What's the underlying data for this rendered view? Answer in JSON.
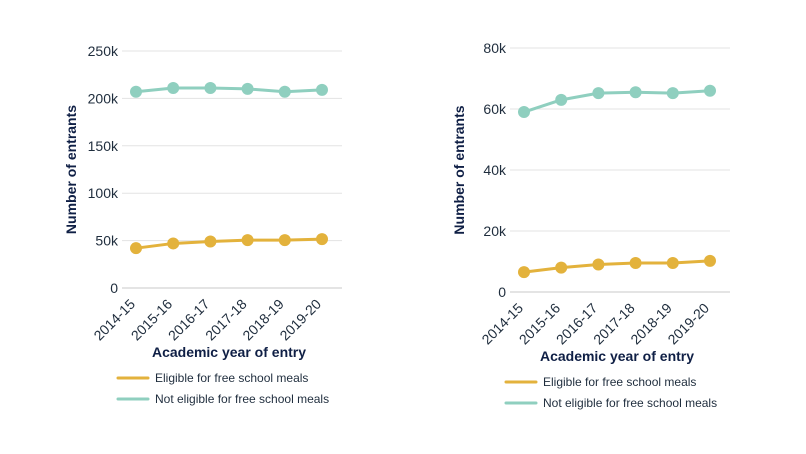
{
  "chart_data": [
    {
      "type": "line",
      "categories": [
        "2014-15",
        "2015-16",
        "2016-17",
        "2017-18",
        "2018-19",
        "2019-20"
      ],
      "series": [
        {
          "name": "Eligible for free school meals",
          "color": "#e3b23c",
          "values": [
            42000,
            47000,
            49000,
            50500,
            50500,
            51500
          ]
        },
        {
          "name": "Not eligible for free school meals",
          "color": "#8fcfbf",
          "values": [
            207000,
            211000,
            211000,
            210000,
            207000,
            209000
          ]
        }
      ],
      "xlabel": "Academic year of entry",
      "ylabel": "Number of entrants",
      "ylim": [
        0,
        250000
      ],
      "yticks": [
        0,
        50000,
        100000,
        150000,
        200000,
        250000
      ],
      "ytick_labels": [
        "0",
        "50k",
        "100k",
        "150k",
        "200k",
        "250k"
      ],
      "grid": true,
      "legend": "bottom"
    },
    {
      "type": "line",
      "categories": [
        "2014-15",
        "2015-16",
        "2016-17",
        "2017-18",
        "2018-19",
        "2019-20"
      ],
      "series": [
        {
          "name": "Eligible for free school meals",
          "color": "#e3b23c",
          "values": [
            6500,
            8000,
            9000,
            9500,
            9500,
            10200
          ]
        },
        {
          "name": "Not eligible for free school meals",
          "color": "#8fcfbf",
          "values": [
            59000,
            63000,
            65200,
            65500,
            65200,
            66000
          ]
        }
      ],
      "xlabel": "Academic year of entry",
      "ylabel": "Number of entrants",
      "ylim": [
        0,
        80000
      ],
      "yticks": [
        0,
        20000,
        40000,
        60000,
        80000
      ],
      "ytick_labels": [
        "0",
        "20k",
        "40k",
        "60k",
        "80k"
      ],
      "grid": true,
      "legend": "bottom"
    }
  ]
}
